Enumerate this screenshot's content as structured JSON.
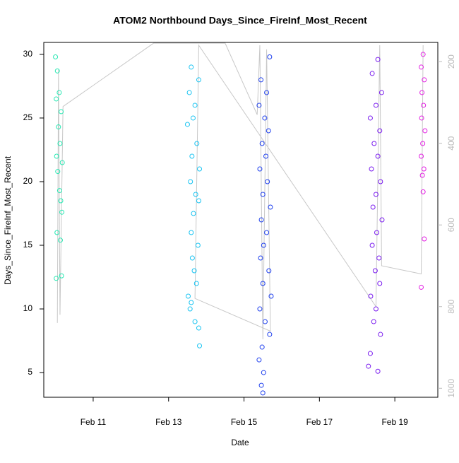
{
  "chart_data": {
    "type": "scatter",
    "title": "ATOM2 Northbound Days_Since_FireInf_Most_Recent",
    "x_label": "Date",
    "y_label": "Days_Since_FireInf_Most_Recent",
    "xlim": [
      9.69,
      20.14
    ],
    "xticks": [
      {
        "value": 11,
        "label": "Feb 11"
      },
      {
        "value": 13,
        "label": "Feb 13"
      },
      {
        "value": 15,
        "label": "Feb 15"
      },
      {
        "value": 17,
        "label": "Feb 17"
      },
      {
        "value": 19,
        "label": "Feb 19"
      }
    ],
    "ylim": [
      3.06,
      30.94
    ],
    "yticks": [
      5,
      10,
      15,
      20,
      25,
      30
    ],
    "y2lim": [
      1022,
      153
    ],
    "y2ticks": [
      200,
      400,
      600,
      800,
      1000
    ],
    "series": [
      {
        "type": "line",
        "axis": "y2",
        "color": "#c8c8c8",
        "x": [
          10.05,
          10.08,
          10.12,
          10.2,
          12.6,
          14.5,
          15.35,
          15.42,
          15.5,
          15.6,
          15.7,
          13.7,
          13.8,
          18.5,
          18.6,
          18.65,
          19.7,
          19.75
        ],
        "values": [
          840,
          220,
          820,
          310,
          155,
          155,
          330,
          160,
          880,
          170,
          860,
          780,
          160,
          800,
          160,
          700,
          720,
          160
        ]
      },
      {
        "color": "#25e8b2",
        "x": [
          10.0,
          10.05,
          10.1,
          10.02,
          10.15,
          10.08,
          10.12,
          10.03,
          10.18,
          10.06,
          10.11,
          10.14,
          10.17,
          10.04,
          10.13,
          10.02,
          10.16
        ],
        "values": [
          29.8,
          28.7,
          27,
          26.5,
          25.5,
          24.3,
          23,
          22,
          21.5,
          20.8,
          19.3,
          18.5,
          17.6,
          16,
          15.4,
          12.4,
          12.6
        ]
      },
      {
        "color": "#19c4f2",
        "x": [
          13.6,
          13.8,
          13.55,
          13.7,
          13.65,
          13.5,
          13.75,
          13.62,
          13.82,
          13.58,
          13.72,
          13.8,
          13.66,
          13.6,
          13.78,
          13.63,
          13.68,
          13.74,
          13.52,
          13.6,
          13.57,
          13.7,
          13.8,
          13.82
        ],
        "values": [
          29,
          28,
          27,
          26,
          25,
          24.5,
          23,
          22,
          21,
          20,
          19,
          18.5,
          17.5,
          16,
          15,
          14,
          13,
          12,
          11,
          10.5,
          10,
          9,
          8.5,
          7.1
        ]
      },
      {
        "color": "#1f40ee",
        "x": [
          15.68,
          15.45,
          15.6,
          15.4,
          15.55,
          15.65,
          15.48,
          15.58,
          15.42,
          15.62,
          15.5,
          15.7,
          15.46,
          15.6,
          15.52,
          15.44,
          15.66,
          15.5,
          15.72,
          15.42,
          15.56,
          15.68,
          15.48,
          15.4,
          15.52,
          15.46,
          15.5
        ],
        "values": [
          29.8,
          28,
          27,
          26,
          25,
          24,
          23,
          22,
          21,
          20,
          19,
          18,
          17,
          16,
          15,
          14,
          13,
          12,
          11,
          10,
          9,
          8,
          7,
          6,
          5,
          4,
          3.4
        ]
      },
      {
        "color": "#7a1cef",
        "x": [
          18.55,
          18.4,
          18.65,
          18.5,
          18.35,
          18.6,
          18.45,
          18.55,
          18.38,
          18.62,
          18.5,
          18.42,
          18.66,
          18.52,
          18.4,
          18.58,
          18.48,
          18.6,
          18.36,
          18.5,
          18.44,
          18.62,
          18.35,
          18.3,
          18.55
        ],
        "values": [
          29.6,
          28.5,
          27,
          26,
          25,
          24,
          23,
          22,
          21,
          20,
          19,
          18,
          17,
          16,
          15,
          14,
          13,
          12,
          11,
          10,
          9,
          8,
          6.5,
          5.5,
          5.1
        ]
      },
      {
        "color": "#e21de2",
        "x": [
          19.75,
          19.7,
          19.78,
          19.72,
          19.76,
          19.71,
          19.8,
          19.74,
          19.7,
          19.77,
          19.73,
          19.75,
          19.78,
          19.7
        ],
        "values": [
          30,
          29,
          28,
          27,
          26,
          25,
          24,
          23,
          22,
          21,
          20.5,
          19.2,
          15.5,
          11.7
        ]
      }
    ]
  }
}
